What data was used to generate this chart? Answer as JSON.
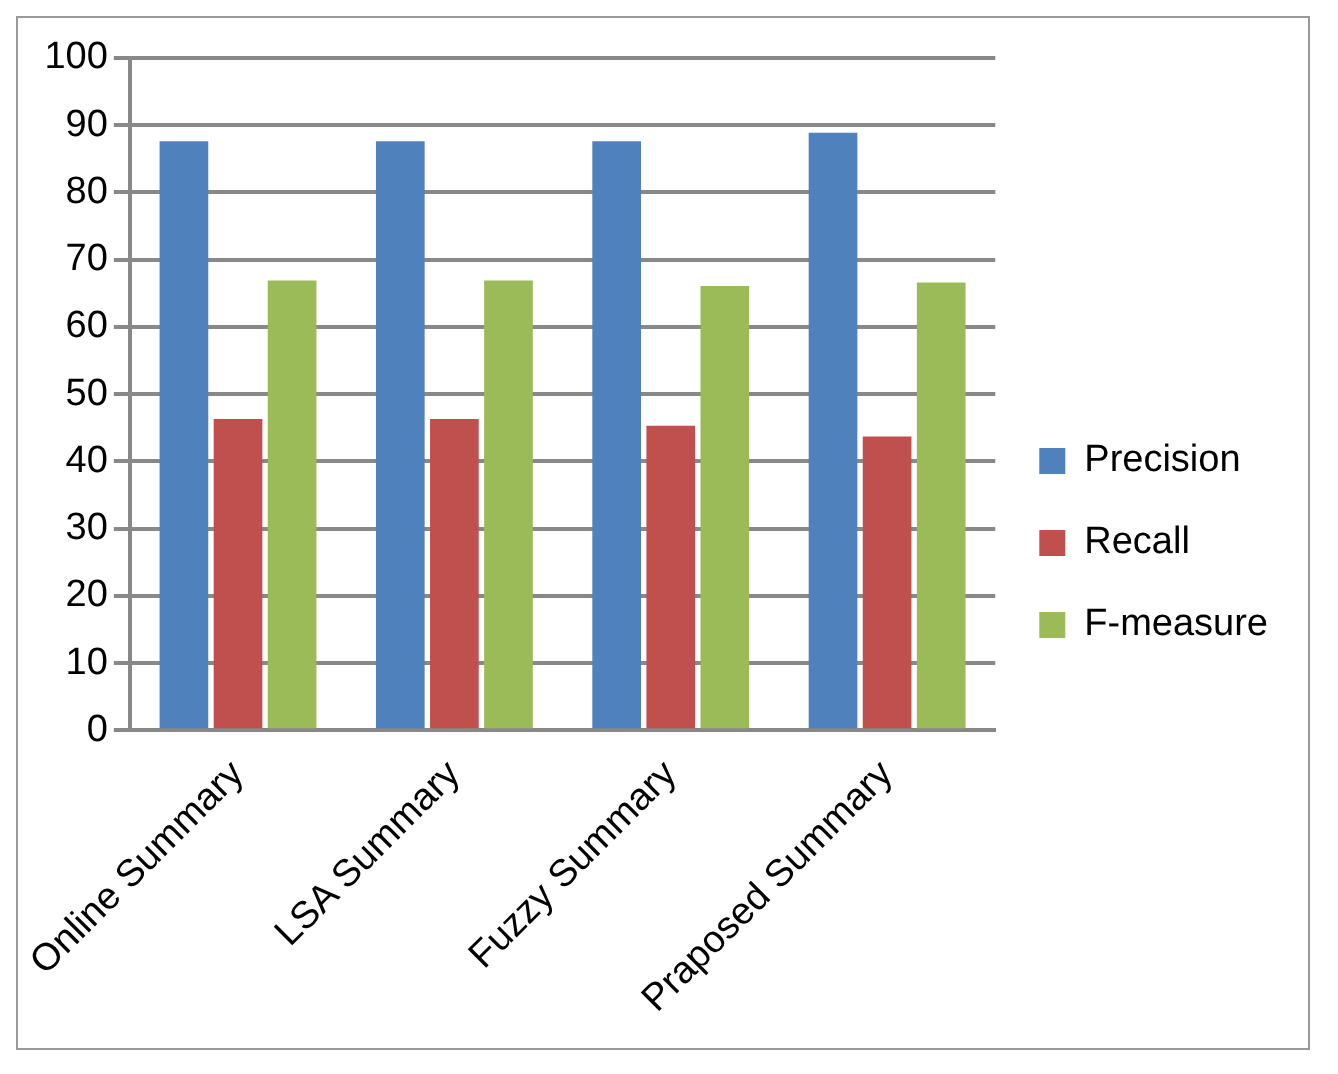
{
  "chart_data": {
    "type": "bar",
    "categories": [
      "Online Summary",
      "LSA Summary",
      "Fuzzy Summary",
      "Praposed Summary"
    ],
    "series": [
      {
        "name": "Precision",
        "color": "#4f81bd",
        "values": [
          87.6,
          87.6,
          87.6,
          88.9
        ]
      },
      {
        "name": "Recall",
        "color": "#c0504d",
        "values": [
          46.3,
          46.3,
          45.3,
          43.7
        ]
      },
      {
        "name": "F-measure",
        "color": "#9bbb59",
        "values": [
          66.9,
          66.9,
          66.1,
          66.6
        ]
      }
    ],
    "ylim": [
      0,
      100
    ],
    "yticks": [
      0,
      10,
      20,
      30,
      40,
      50,
      60,
      70,
      80,
      90,
      100
    ],
    "grid": "y",
    "legend": "right"
  }
}
